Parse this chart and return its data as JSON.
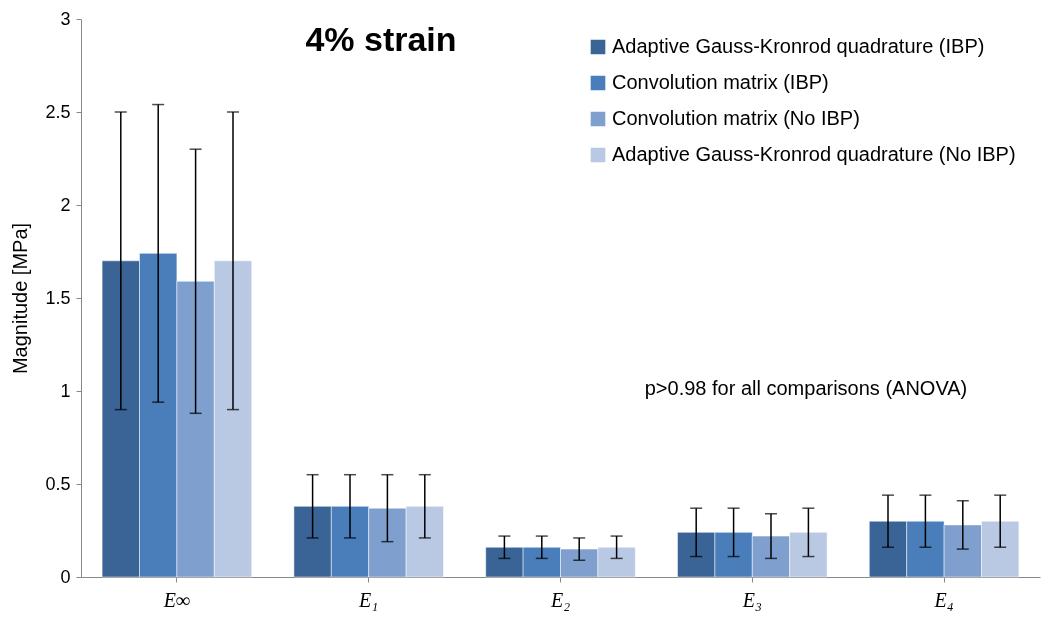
{
  "chart_data": {
    "type": "bar",
    "title": "4% strain",
    "ylabel": "Magnitude [MPa]",
    "categories": [
      "E∞",
      "E₁",
      "E₂",
      "E₃",
      "E₄"
    ],
    "series": [
      {
        "name": "Adaptive Gauss-Kronrod quadrature  (IBP)",
        "color": "#3b6496",
        "values": [
          1.7,
          0.38,
          0.16,
          0.24,
          0.3
        ],
        "errors": [
          0.8,
          0.17,
          0.06,
          0.13,
          0.14
        ]
      },
      {
        "name": "Convolution matrix (IBP)",
        "color": "#4a7ebb",
        "values": [
          1.74,
          0.38,
          0.16,
          0.24,
          0.3
        ],
        "errors": [
          0.8,
          0.17,
          0.06,
          0.13,
          0.14
        ]
      },
      {
        "name": "Convolution matrix (No IBP)",
        "color": "#7f9fcf",
        "values": [
          1.59,
          0.37,
          0.15,
          0.22,
          0.28
        ],
        "errors": [
          0.71,
          0.18,
          0.06,
          0.12,
          0.13
        ]
      },
      {
        "name": "Adaptive Gauss-Kronrod quadrature  (No IBP)",
        "color": "#b9c9e3",
        "values": [
          1.7,
          0.38,
          0.16,
          0.24,
          0.3
        ],
        "errors": [
          0.8,
          0.17,
          0.06,
          0.13,
          0.14
        ]
      }
    ],
    "ylim": [
      0,
      3
    ],
    "yticks": [
      0,
      0.5,
      1,
      1.5,
      2,
      2.5,
      3
    ],
    "grid": false,
    "legend": "top right",
    "annotations": [
      "p>0.98 for all comparisons (ANOVA)"
    ]
  }
}
